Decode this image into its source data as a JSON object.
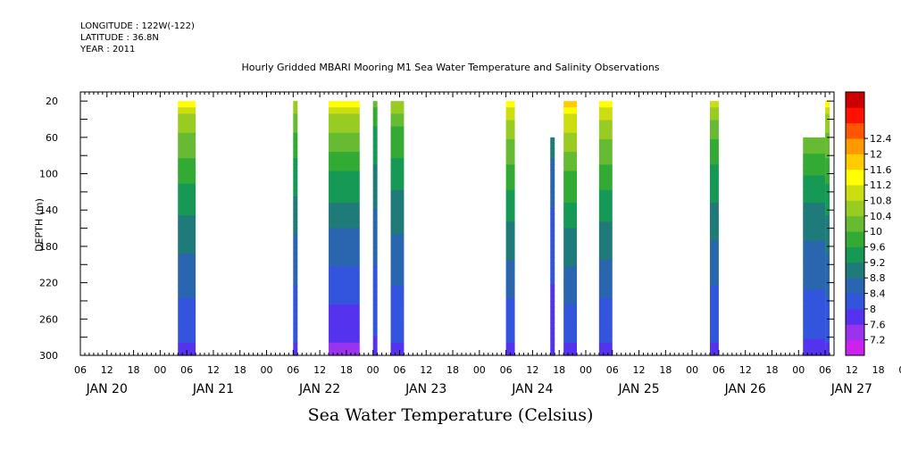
{
  "header": {
    "longitude": "LONGITUDE : 122W(-122)",
    "latitude": "LATITUDE : 36.8N",
    "year": "YEAR : 2011"
  },
  "chart_data": {
    "type": "heatmap",
    "title": "Hourly Gridded MBARI Mooring M1 Sea Water Temperature and Salinity Observations",
    "xlabel": "Sea Water Temperature (Celsius)",
    "ylabel": "DEPTH (m)",
    "x_hour_ticks": [
      "06",
      "12",
      "18",
      "00",
      "06",
      "12",
      "18",
      "00",
      "06",
      "12",
      "18",
      "00",
      "06",
      "12",
      "18",
      "00",
      "06",
      "12",
      "18",
      "00",
      "06",
      "12",
      "18",
      "00",
      "06",
      "12",
      "18",
      "00",
      "06",
      "12",
      "18",
      "00",
      "06"
    ],
    "x_day_labels": [
      "JAN 20",
      "JAN 21",
      "JAN 22",
      "JAN 23",
      "JAN 24",
      "JAN 25",
      "JAN 26",
      "JAN 27"
    ],
    "x_range_hours_since_jan20_00": [
      6,
      176
    ],
    "y_ticks": [
      20,
      60,
      100,
      140,
      180,
      220,
      260,
      300
    ],
    "y_range": [
      300,
      20
    ],
    "colorbar": {
      "levels": [
        7.2,
        7.6,
        8,
        8.4,
        8.8,
        9.2,
        9.6,
        10,
        10.4,
        10.8,
        11.2,
        11.6,
        12,
        12.4
      ],
      "labels": [
        "7.2",
        "7.6",
        "8",
        "8.4",
        "8.8",
        "9.2",
        "9.6",
        "10",
        "10.4",
        "10.8",
        "11.2",
        "11.6",
        "12",
        "12.4"
      ],
      "colors": [
        "#cc22ee",
        "#9933ee",
        "#5533ee",
        "#3355dd",
        "#2a66b0",
        "#1f7a7a",
        "#159955",
        "#33aa33",
        "#66bb33",
        "#99cc22",
        "#ccdd11",
        "#ffff00",
        "#ffcc00",
        "#ff9900",
        "#ff5500",
        "#ff1100",
        "#cc0000"
      ]
    },
    "segments": [
      {
        "start_hour": 28,
        "end_hour": 32,
        "top_depth": 20,
        "surface_temp": 11.6,
        "bottom_temp": 7.9
      },
      {
        "start_hour": 54,
        "end_hour": 55,
        "top_depth": 20,
        "surface_temp": 11.0,
        "bottom_temp": 7.9
      },
      {
        "start_hour": 62,
        "end_hour": 69,
        "top_depth": 20,
        "surface_temp": 11.7,
        "bottom_temp": 7.5
      },
      {
        "start_hour": 72,
        "end_hour": 73,
        "top_depth": 20,
        "surface_temp": 10.3,
        "bottom_temp": 7.9
      },
      {
        "start_hour": 76,
        "end_hour": 79,
        "top_depth": 20,
        "surface_temp": 10.9,
        "bottom_temp": 7.9
      },
      {
        "start_hour": 102,
        "end_hour": 104,
        "top_depth": 20,
        "surface_temp": 11.8,
        "bottom_temp": 7.9
      },
      {
        "start_hour": 112,
        "end_hour": 113,
        "top_depth": 60,
        "surface_temp": 9.2,
        "bottom_temp": 7.7
      },
      {
        "start_hour": 115,
        "end_hour": 118,
        "top_depth": 20,
        "surface_temp": 12.1,
        "bottom_temp": 7.9
      },
      {
        "start_hour": 123,
        "end_hour": 126,
        "top_depth": 20,
        "surface_temp": 11.8,
        "bottom_temp": 7.9
      },
      {
        "start_hour": 148,
        "end_hour": 150,
        "top_depth": 20,
        "surface_temp": 11.1,
        "bottom_temp": 7.9
      },
      {
        "start_hour": 169,
        "end_hour": 174,
        "top_depth": 60,
        "surface_temp": 10.6,
        "bottom_temp": 7.9
      },
      {
        "start_hour": 174,
        "end_hour": 175,
        "top_depth": 20,
        "surface_temp": 11.6,
        "bottom_temp": 7.9
      }
    ],
    "grid": false,
    "legend": "right"
  }
}
